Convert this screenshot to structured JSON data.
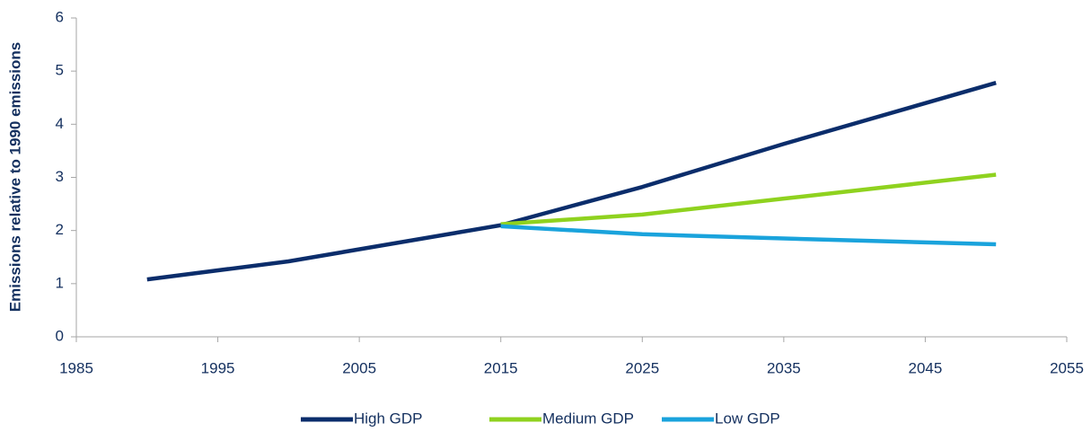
{
  "chart_data": {
    "type": "line",
    "ylabel": "Emissions relative to 1990 emissions",
    "x": [
      1990,
      2000,
      2015,
      2025,
      2035,
      2050
    ],
    "series": [
      {
        "name": "High GDP",
        "color": "#0b2d6b",
        "values": [
          1.08,
          1.42,
          2.1,
          2.82,
          3.63,
          4.78
        ]
      },
      {
        "name": "Medium GDP",
        "color": "#8fd21f",
        "values": [
          null,
          null,
          2.12,
          2.3,
          2.6,
          3.05
        ]
      },
      {
        "name": "Low GDP",
        "color": "#1aa3dc",
        "values": [
          null,
          null,
          2.08,
          1.93,
          1.85,
          1.74
        ]
      }
    ],
    "xlim": [
      1985,
      2055
    ],
    "xticks": [
      1985,
      1995,
      2005,
      2015,
      2025,
      2035,
      2045,
      2055
    ],
    "ylim": [
      0,
      6
    ],
    "yticks": [
      0,
      1,
      2,
      3,
      4,
      5,
      6
    ],
    "legend": "bottom"
  }
}
